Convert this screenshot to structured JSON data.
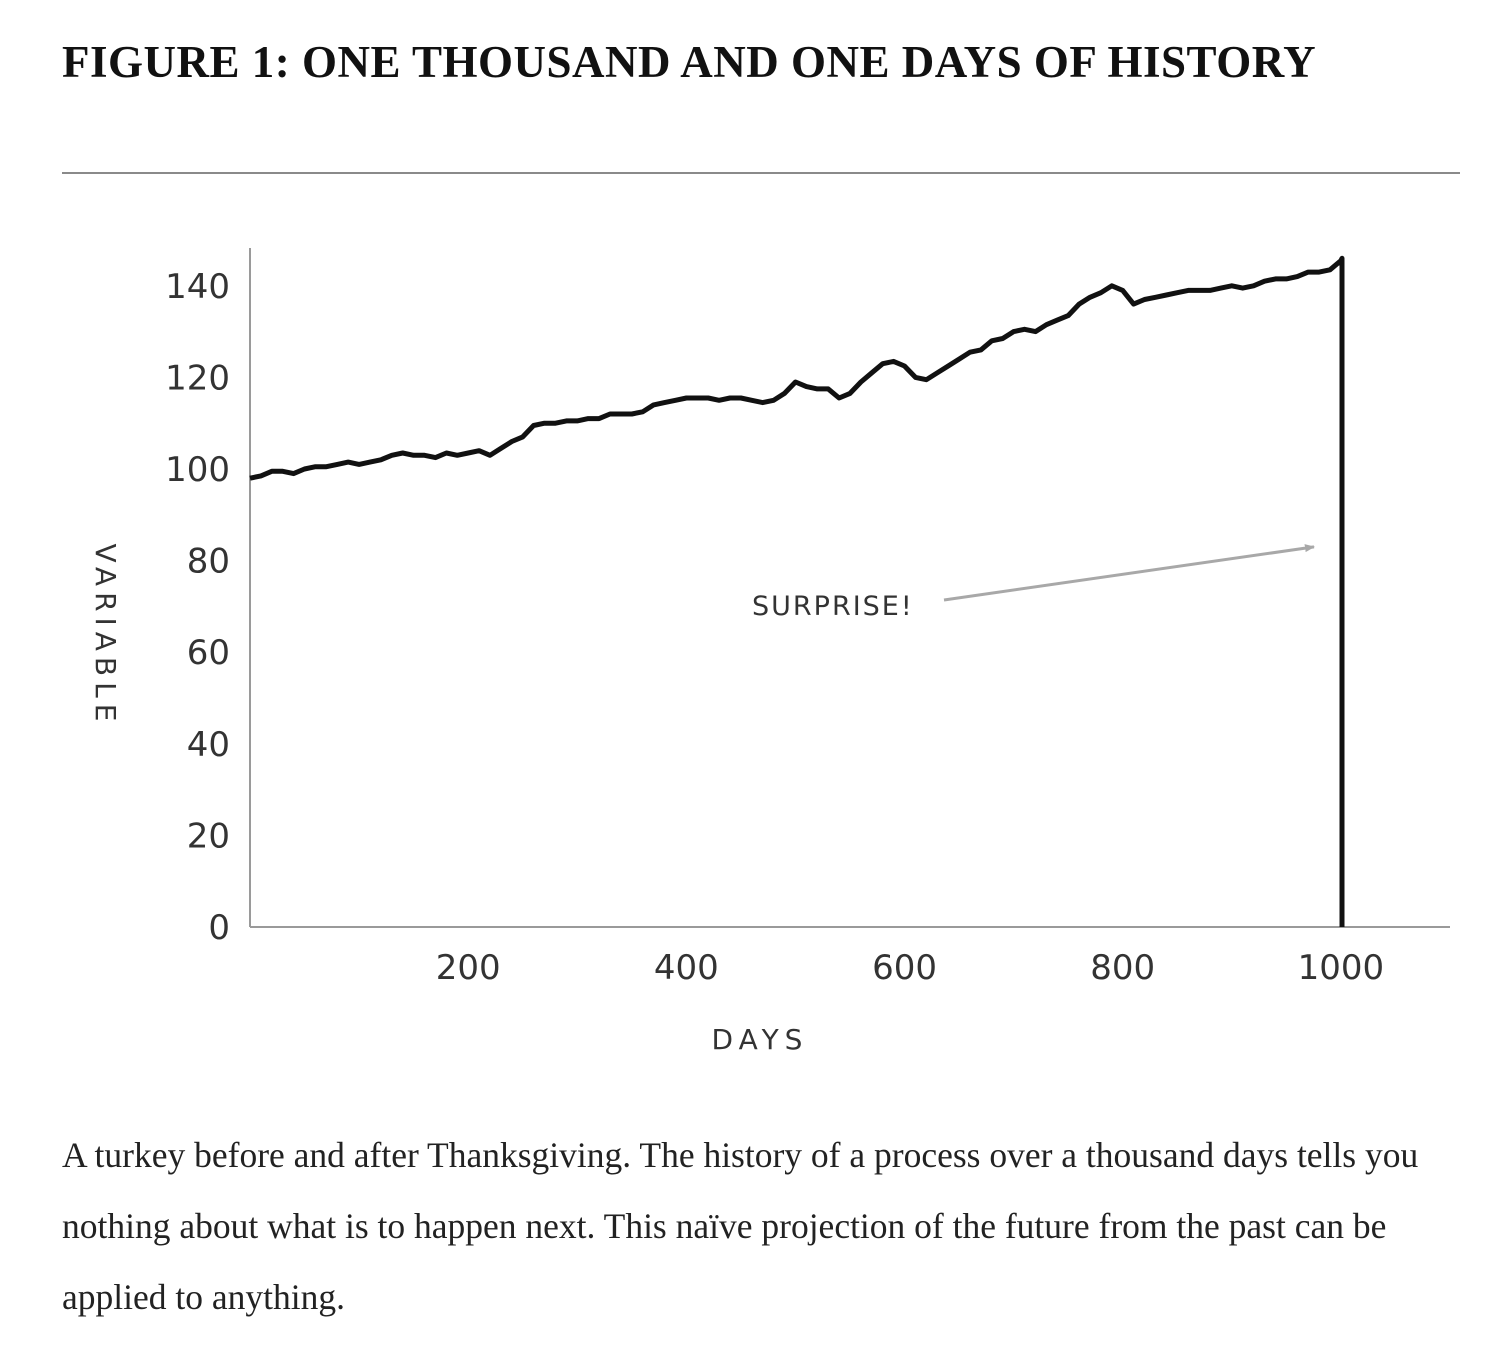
{
  "figure": {
    "title": "FIGURE 1: ONE THOUSAND AND ONE DAYS OF HISTORY",
    "caption": "A turkey before and after Thanksgiving. The history of a process over a thousand days tells you nothing about what is to happen next. This naïve projection of the future from the past can be applied to anything."
  },
  "chart_data": {
    "type": "line",
    "xlabel": "DAYS",
    "ylabel": "VARIABLE",
    "xlim": [
      0,
      1100
    ],
    "ylim": [
      0,
      150
    ],
    "xticks": [
      200,
      400,
      600,
      800,
      1000
    ],
    "yticks": [
      0,
      20,
      40,
      60,
      80,
      100,
      120,
      140
    ],
    "grid": false,
    "legend": "none",
    "line_color": "#111111",
    "arrow_color": "#a8a8a8",
    "annotation": {
      "text": "SURPRISE!",
      "target_x": 1001,
      "target_y": 83
    },
    "series": [
      {
        "x": [
          0,
          10,
          20,
          30,
          40,
          50,
          60,
          70,
          80,
          90,
          100,
          110,
          120,
          130,
          140,
          150,
          160,
          170,
          180,
          190,
          200,
          210,
          220,
          230,
          240,
          250,
          260,
          270,
          280,
          290,
          300,
          310,
          320,
          330,
          340,
          350,
          360,
          370,
          380,
          390,
          400,
          410,
          420,
          430,
          440,
          450,
          460,
          470,
          480,
          490,
          500,
          510,
          520,
          530,
          540,
          550,
          560,
          570,
          580,
          590,
          600,
          610,
          620,
          630,
          640,
          650,
          660,
          670,
          680,
          690,
          700,
          710,
          720,
          730,
          740,
          750,
          760,
          770,
          780,
          790,
          800,
          810,
          820,
          830,
          840,
          850,
          860,
          870,
          880,
          890,
          900,
          910,
          920,
          930,
          940,
          950,
          960,
          970,
          980,
          990,
          1000,
          1001,
          1001
        ],
        "y": [
          98,
          98.5,
          99.5,
          99.5,
          99,
          100,
          100.5,
          100.5,
          101,
          101.5,
          101,
          101.5,
          102,
          103,
          103.5,
          103,
          103,
          102.5,
          103.5,
          103,
          103.5,
          104,
          103,
          104.5,
          106,
          107,
          109.5,
          110,
          110,
          110.5,
          110.5,
          111,
          111,
          112,
          112,
          112,
          112.5,
          114,
          114.5,
          115,
          115.5,
          115.5,
          115.5,
          115,
          115.5,
          115.5,
          115,
          114.5,
          115,
          116.5,
          119,
          118,
          117.5,
          117.5,
          115.5,
          116.5,
          119,
          121,
          123,
          123.5,
          122.5,
          120,
          119.5,
          121,
          122.5,
          124,
          125.5,
          126,
          128,
          128.5,
          130,
          130.5,
          130,
          131.5,
          132.5,
          133.5,
          136,
          137.5,
          138.5,
          140,
          139,
          136,
          137,
          137.5,
          138,
          138.5,
          139,
          139,
          139,
          139.5,
          140,
          139.5,
          140,
          141,
          141.5,
          141.5,
          142,
          143,
          143,
          143.5,
          145.5,
          146,
          0
        ]
      }
    ]
  }
}
